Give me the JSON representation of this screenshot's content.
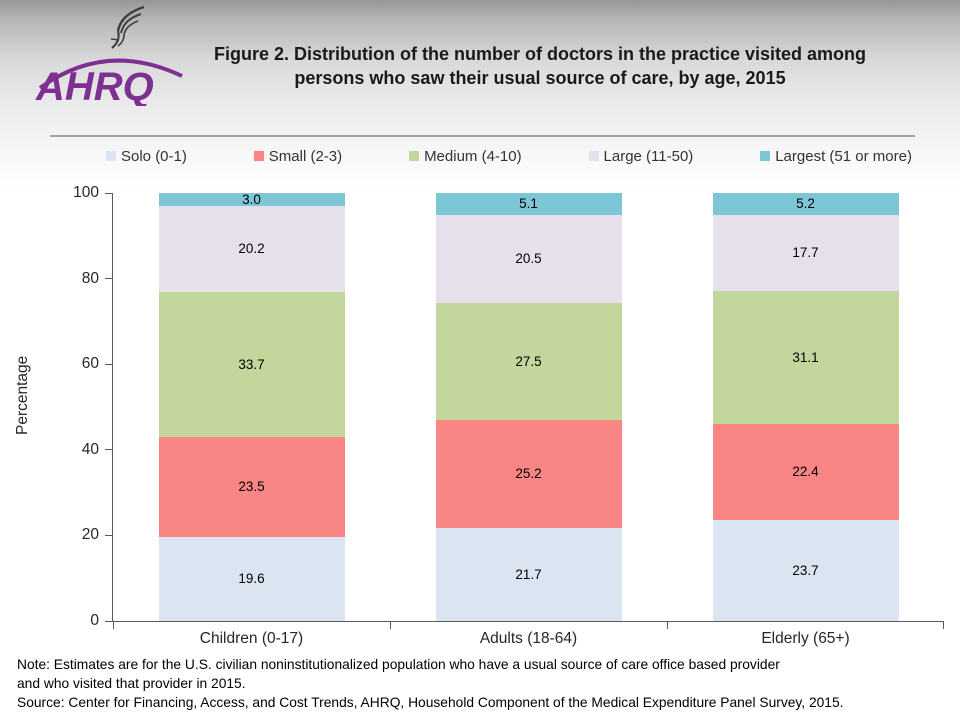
{
  "header": {
    "title_line1": "Figure 2. Distribution of the number of doctors in the practice visited among",
    "title_line2": "persons who saw their usual source of care, by age, 2015",
    "logo_text": "AHRQ"
  },
  "chart_data": {
    "type": "bar",
    "stacked": true,
    "title": "Figure 2. Distribution of the number of doctors in the practice visited among persons who saw their usual source of care, by age, 2015",
    "categories": [
      "Children (0-17)",
      "Adults (18-64)",
      "Elderly (65+)"
    ],
    "series": [
      {
        "name": "Solo (0-1)",
        "color": "#dbe5f1",
        "values": [
          19.6,
          21.7,
          23.7
        ]
      },
      {
        "name": "Small (2-3)",
        "color": "#fa8585",
        "values": [
          23.5,
          25.2,
          22.4
        ]
      },
      {
        "name": "Medium (4-10)",
        "color": "#c3d69b",
        "values": [
          33.7,
          27.5,
          31.1
        ]
      },
      {
        "name": "Large (11-50)",
        "color": "#e6e0ec",
        "values": [
          20.2,
          20.5,
          17.7
        ]
      },
      {
        "name": "Largest (51 or more)",
        "color": "#7cc6d6",
        "values": [
          3.0,
          5.1,
          5.2
        ]
      }
    ],
    "xlabel": "",
    "ylabel": "Percentage",
    "ylim": [
      0,
      100
    ],
    "yticks": [
      0,
      20,
      40,
      60,
      80,
      100
    ],
    "grid": false,
    "legend_position": "top",
    "accent_colors": {
      "axis": "#595959",
      "divider": "#a3a3a3",
      "logo_purple": "#7d3092"
    }
  },
  "footer": {
    "note_line1": "Note: Estimates are for the U.S. civilian noninstitutionalized population who have a usual source of care office based provider",
    "note_line2": "and who visited that provider in 2015.",
    "source_line": "Source: Center for Financing, Access, and Cost Trends, AHRQ, Household Component of the Medical Expenditure Panel Survey, 2015."
  }
}
